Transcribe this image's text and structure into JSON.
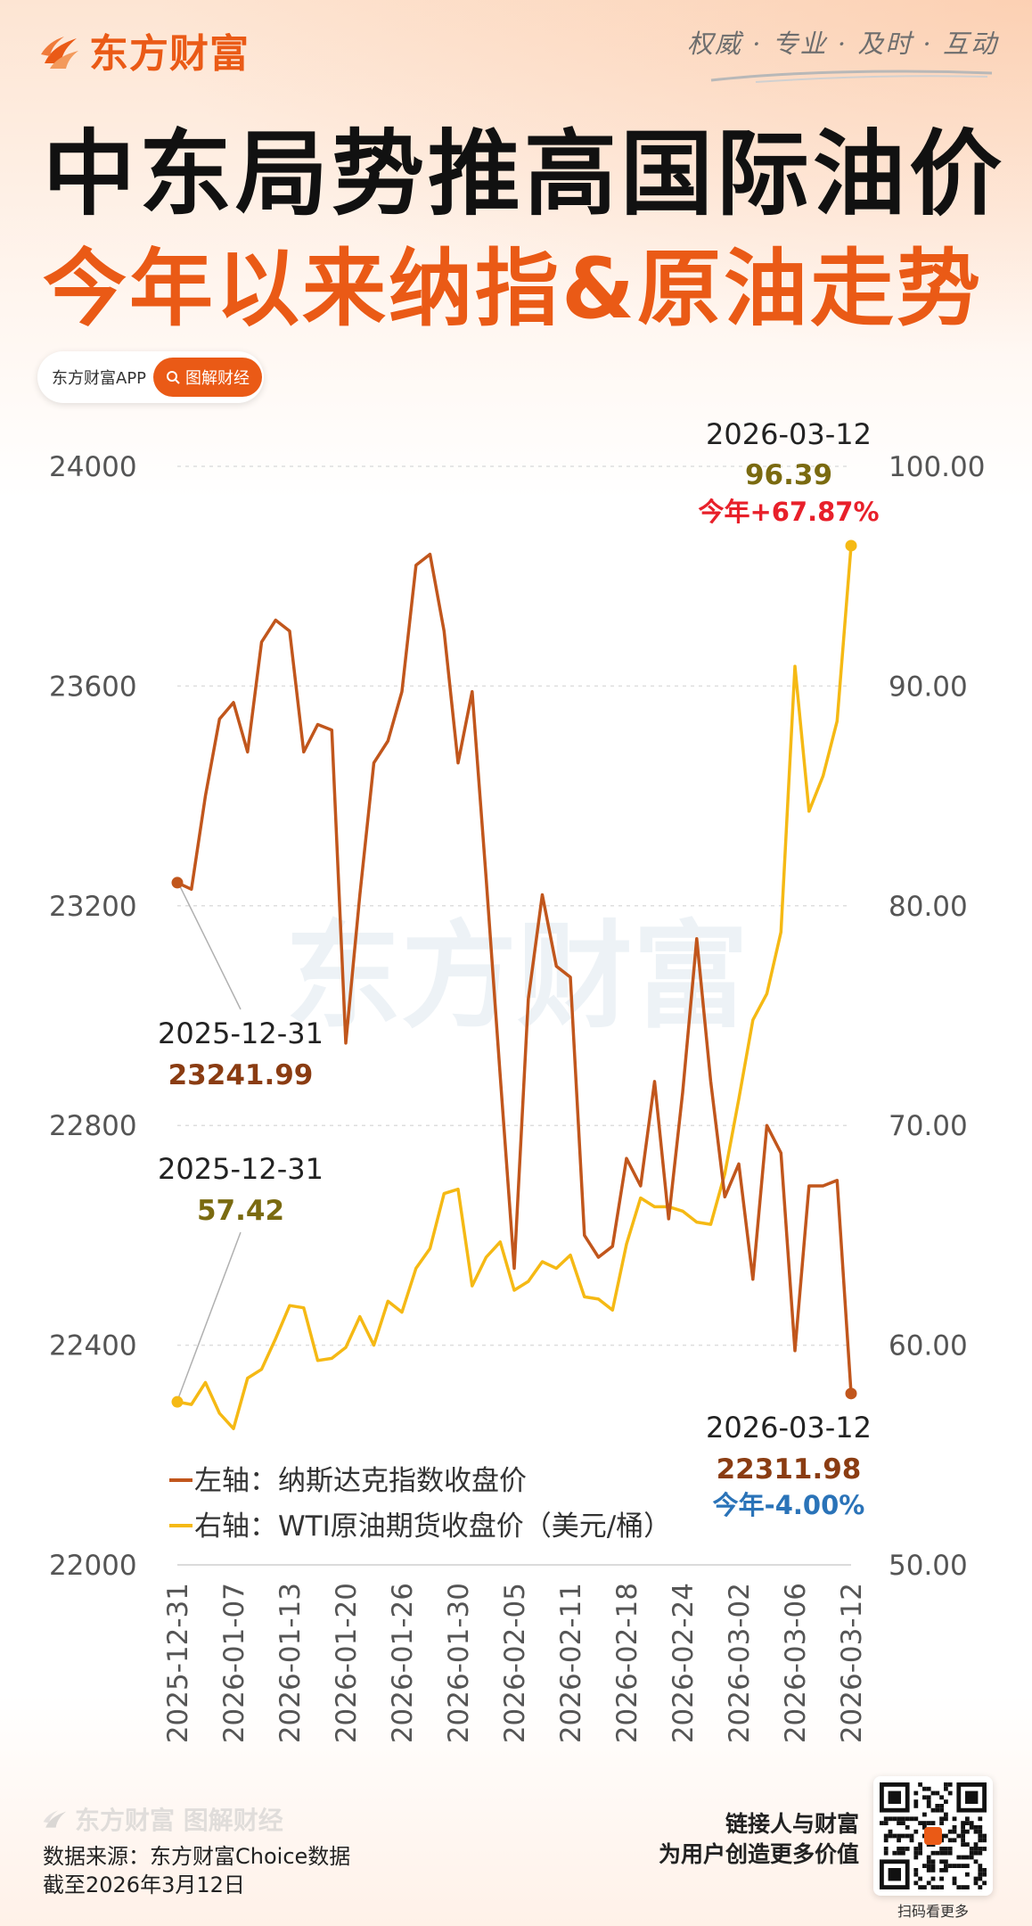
{
  "brand": {
    "name": "东方财富",
    "slogan": "权威 · 专业 · 及时 · 互动",
    "color": "#ea5a16"
  },
  "title": {
    "line1": "中东局势推高国际油价",
    "line2": "今年以来纳指&原油走势"
  },
  "app_badge": {
    "label": "东方财富APP",
    "button": "图解财经"
  },
  "watermark": "东方财富",
  "chart_data": {
    "type": "line",
    "dual_axis": true,
    "x_ticks": [
      "2025-12-31",
      "2026-01-07",
      "2026-01-13",
      "2026-01-20",
      "2026-01-26",
      "2026-01-30",
      "2026-02-05",
      "2026-02-11",
      "2026-02-18",
      "2026-02-24",
      "2026-03-02",
      "2026-03-06",
      "2026-03-12"
    ],
    "left_axis": {
      "min": 22000,
      "max": 24000,
      "ticks": [
        "24000",
        "23600",
        "23200",
        "22800",
        "22400",
        "22000"
      ]
    },
    "right_axis": {
      "min": 50,
      "max": 100,
      "ticks": [
        "100.00",
        "90.00",
        "80.00",
        "70.00",
        "60.00",
        "50.00"
      ]
    },
    "series": [
      {
        "name": "纳斯达克指数收盘价",
        "axis": "left",
        "color": "#c1561c",
        "values": [
          23241.99,
          23230,
          23400,
          23540,
          23570,
          23480,
          23680,
          23720,
          23700,
          23480,
          23530,
          23520,
          22950,
          23220,
          23460,
          23500,
          23590,
          23820,
          23840,
          23700,
          23460,
          23590,
          23250,
          22890,
          22540,
          23030,
          23220,
          23090,
          23070,
          22600,
          22560,
          22580,
          22740,
          22690,
          22880,
          22630,
          22860,
          23140,
          22880,
          22670,
          22730,
          22520,
          22800,
          22750,
          22390,
          22690,
          22690,
          22700,
          22311.98
        ]
      },
      {
        "name": "WTI原油期货收盘价（美元/桶）",
        "axis": "right",
        "color": "#f5b914",
        "values": [
          57.42,
          57.3,
          58.3,
          56.9,
          56.2,
          58.5,
          58.9,
          60.3,
          61.8,
          61.7,
          59.3,
          59.4,
          59.9,
          61.3,
          60.0,
          62.0,
          61.5,
          63.5,
          64.4,
          66.9,
          67.1,
          62.7,
          64.0,
          64.7,
          62.5,
          62.9,
          63.8,
          63.5,
          64.1,
          62.2,
          62.1,
          61.6,
          64.6,
          66.7,
          66.3,
          66.3,
          66.1,
          65.6,
          65.5,
          67.8,
          71.2,
          74.8,
          76.0,
          78.8,
          90.9,
          84.3,
          85.9,
          88.4,
          96.39
        ]
      }
    ],
    "legend": {
      "left_prefix": "左轴：",
      "left_name": "纳斯达克指数收盘价",
      "right_prefix": "右轴：",
      "right_name": "WTI原油期货收盘价（美元/桶）"
    },
    "annotations": {
      "nasdaq_start": {
        "date": "2025-12-31",
        "value": "23241.99"
      },
      "oil_start": {
        "date": "2025-12-31",
        "value": "57.42"
      },
      "oil_end": {
        "date": "2026-03-12",
        "value": "96.39",
        "ytd": "今年+67.87%"
      },
      "nasdaq_end": {
        "date": "2026-03-12",
        "value": "22311.98",
        "ytd": "今年-4.00%"
      }
    },
    "colors": {
      "nasdaq_value": "#8a3c12",
      "oil_value": "#7a6a10",
      "ytd_up": "#e8202a",
      "ytd_down": "#2a73b8"
    }
  },
  "footer": {
    "logo_text": "东方财富 图解财经",
    "source": "数据来源：东方财富Choice数据",
    "as_of": "截至2026年3月12日",
    "tagline1": "链接人与财富",
    "tagline2": "为用户创造更多价值",
    "qr_label": "扫码看更多"
  }
}
